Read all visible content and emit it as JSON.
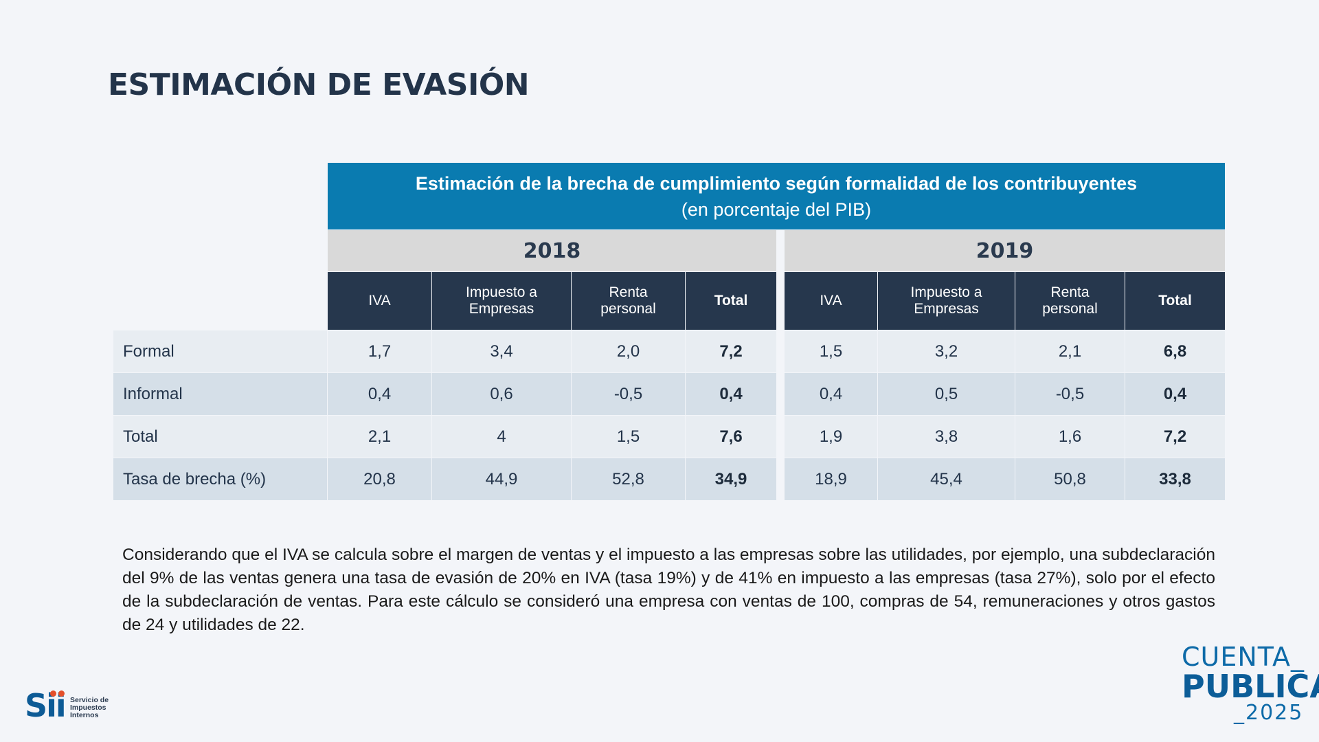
{
  "title": "ESTIMACIÓN DE EVASIÓN",
  "table": {
    "title": "Estimación de la brecha de cumplimiento según formalidad de los contribuyentes",
    "subtitle": "(en porcentaje del PIB)",
    "years": [
      "2018",
      "2019"
    ],
    "columns": [
      "IVA",
      "Impuesto a Empresas",
      "Renta personal",
      "Total"
    ],
    "rows": [
      {
        "label": "Formal",
        "y2018": [
          "1,7",
          "3,4",
          "2,0",
          "7,2"
        ],
        "y2019": [
          "1,5",
          "3,2",
          "2,1",
          "6,8"
        ]
      },
      {
        "label": "Informal",
        "y2018": [
          "0,4",
          "0,6",
          "-0,5",
          "0,4"
        ],
        "y2019": [
          "0,4",
          "0,5",
          "-0,5",
          "0,4"
        ]
      },
      {
        "label": "Total",
        "y2018": [
          "2,1",
          "4",
          "1,5",
          "7,6"
        ],
        "y2019": [
          "1,9",
          "3,8",
          "1,6",
          "7,2"
        ]
      },
      {
        "label": "Tasa de brecha (%)",
        "y2018": [
          "20,8",
          "44,9",
          "52,8",
          "34,9"
        ],
        "y2019": [
          "18,9",
          "45,4",
          "50,8",
          "33,8"
        ]
      }
    ]
  },
  "note": "Considerando que el IVA se calcula sobre el margen de ventas y el impuesto a las empresas sobre las utilidades, por ejemplo, una subdeclaración del 9% de las ventas genera una tasa de evasión de 20% en IVA (tasa 19%) y de 41% en impuesto a las empresas (tasa 27%), solo por el efecto de la subdeclaración de ventas. Para este cálculo se consideró una empresa con ventas de 100, compras de 54, remuneraciones y otros gastos de 24 y utilidades de 22.",
  "logo_sii": {
    "mark": "Sii",
    "text": [
      "Servicio de",
      "Impuestos",
      "Internos"
    ]
  },
  "logo_cuenta": {
    "line1": "CUENTA_",
    "line2": "PUBLICA",
    "line3": "_2025"
  },
  "colors": {
    "banner": "#0a7bb0",
    "header_dark": "#26374d",
    "year_bg": "#d9d9d9",
    "row_light": "#e8edf2",
    "row_dark": "#d5dfe8",
    "brand_blue": "#0d6aa8",
    "accent_orange": "#e4502b"
  }
}
